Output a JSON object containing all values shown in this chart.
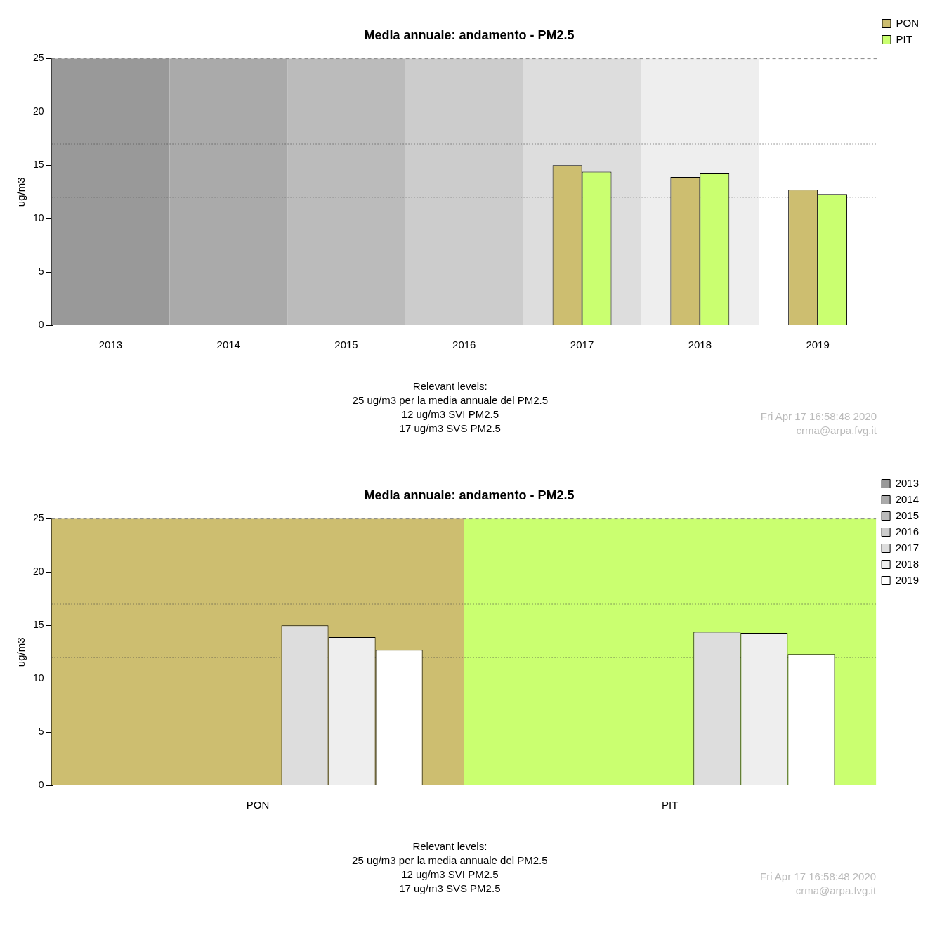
{
  "chart_data": [
    {
      "type": "bar",
      "title": "Media annuale: andamento - PM2.5",
      "ylabel": "ug/m3",
      "categories": [
        "2013",
        "2014",
        "2015",
        "2016",
        "2017",
        "2018",
        "2019"
      ],
      "series": [
        {
          "name": "PON",
          "color": "#cdbe70",
          "values": [
            null,
            null,
            null,
            null,
            15.0,
            13.9,
            12.7
          ]
        },
        {
          "name": "PIT",
          "color": "#caff70",
          "values": [
            null,
            null,
            null,
            null,
            14.4,
            14.3,
            12.3
          ]
        }
      ],
      "ylim": [
        0,
        25
      ],
      "yticks": [
        0,
        5,
        10,
        15,
        20,
        25
      ],
      "grid": false,
      "legend": "top right",
      "bands": [
        {
          "axis": "x",
          "from": "2013",
          "to": "2013",
          "color": "#999999"
        },
        {
          "axis": "x",
          "from": "2014",
          "to": "2014",
          "color": "#aaaaaa"
        },
        {
          "axis": "x",
          "from": "2015",
          "to": "2015",
          "color": "#bbbbbb"
        },
        {
          "axis": "x",
          "from": "2016",
          "to": "2016",
          "color": "#cccccc"
        },
        {
          "axis": "x",
          "from": "2017",
          "to": "2017",
          "color": "#dddddd"
        },
        {
          "axis": "x",
          "from": "2018",
          "to": "2018",
          "color": "#eeeeee"
        }
      ],
      "ref_lines": [
        {
          "axis": "y",
          "value": 25,
          "color": "#888888",
          "line_style": "dashed"
        },
        {
          "axis": "y",
          "value": 17,
          "color": "#444444",
          "line_style": "dotted"
        },
        {
          "axis": "y",
          "value": 12,
          "color": "#444444",
          "line_style": "dotted"
        }
      ],
      "annotations": [
        "Relevant levels:",
        "25 ug/m3 per la media annuale del PM2.5",
        "12 ug/m3 SVI PM2.5",
        "17 ug/m3 SVS PM2.5",
        "Fri Apr 17 16:58:48 2020",
        "crma@arpa.fvg.it"
      ]
    },
    {
      "type": "bar",
      "title": "Media annuale: andamento - PM2.5",
      "ylabel": "ug/m3",
      "categories": [
        "PON",
        "PIT"
      ],
      "series": [
        {
          "name": "2013",
          "color": "#999999",
          "values": [
            null,
            null
          ]
        },
        {
          "name": "2014",
          "color": "#aaaaaa",
          "values": [
            null,
            null
          ]
        },
        {
          "name": "2015",
          "color": "#bbbbbb",
          "values": [
            null,
            null
          ]
        },
        {
          "name": "2016",
          "color": "#cccccc",
          "values": [
            null,
            null
          ]
        },
        {
          "name": "2017",
          "color": "#dddddd",
          "values": [
            15.0,
            14.4
          ]
        },
        {
          "name": "2018",
          "color": "#eeeeee",
          "values": [
            13.9,
            14.3
          ]
        },
        {
          "name": "2019",
          "color": "#ffffff",
          "values": [
            12.7,
            12.3
          ]
        }
      ],
      "ylim": [
        0,
        25
      ],
      "yticks": [
        0,
        5,
        10,
        15,
        20,
        25
      ],
      "grid": false,
      "legend": "top right",
      "bands": [
        {
          "axis": "x",
          "from": "PON",
          "to": "PON",
          "color": "#cdbe70"
        },
        {
          "axis": "x",
          "from": "PIT",
          "to": "PIT",
          "color": "#caff70"
        }
      ],
      "ref_lines": [
        {
          "axis": "y",
          "value": 25,
          "color": "#888888",
          "line_style": "dashed"
        },
        {
          "axis": "y",
          "value": 17,
          "color": "#444444",
          "line_style": "dotted"
        },
        {
          "axis": "y",
          "value": 12,
          "color": "#444444",
          "line_style": "dotted"
        }
      ],
      "annotations": [
        "Relevant levels:",
        "25 ug/m3 per la media annuale del PM2.5",
        "12 ug/m3 SVI PM2.5",
        "17 ug/m3 SVS PM2.5",
        "Fri Apr 17 16:58:48 2020",
        "crma@arpa.fvg.it"
      ]
    }
  ]
}
